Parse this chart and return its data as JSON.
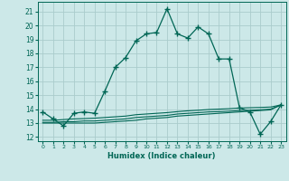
{
  "xlabel": "Humidex (Indice chaleur)",
  "background_color": "#cce8e8",
  "grid_color": "#aacccc",
  "line_color": "#006655",
  "xlim": [
    -0.5,
    23.5
  ],
  "ylim": [
    11.7,
    21.7
  ],
  "yticks": [
    12,
    13,
    14,
    15,
    16,
    17,
    18,
    19,
    20,
    21
  ],
  "xticks": [
    0,
    1,
    2,
    3,
    4,
    5,
    6,
    7,
    8,
    9,
    10,
    11,
    12,
    13,
    14,
    15,
    16,
    17,
    18,
    19,
    20,
    21,
    22,
    23
  ],
  "main_line": [
    13.8,
    13.3,
    12.8,
    13.7,
    13.8,
    13.7,
    15.3,
    17.0,
    17.7,
    18.9,
    19.4,
    19.5,
    21.2,
    19.4,
    19.1,
    19.9,
    19.4,
    17.6,
    17.6,
    14.1,
    13.8,
    12.2,
    13.1,
    14.3
  ],
  "flat_lines": [
    [
      13.0,
      13.0,
      13.0,
      13.0,
      13.0,
      13.0,
      13.05,
      13.1,
      13.15,
      13.2,
      13.3,
      13.35,
      13.4,
      13.5,
      13.55,
      13.6,
      13.65,
      13.7,
      13.75,
      13.8,
      13.85,
      13.9,
      13.95,
      14.3
    ],
    [
      13.05,
      13.05,
      13.1,
      13.1,
      13.15,
      13.15,
      13.2,
      13.25,
      13.3,
      13.4,
      13.45,
      13.5,
      13.55,
      13.65,
      13.7,
      13.75,
      13.8,
      13.82,
      13.85,
      13.9,
      13.92,
      13.95,
      14.0,
      14.3
    ],
    [
      13.2,
      13.2,
      13.25,
      13.3,
      13.32,
      13.35,
      13.4,
      13.45,
      13.5,
      13.6,
      13.65,
      13.7,
      13.75,
      13.82,
      13.88,
      13.92,
      13.97,
      14.0,
      14.03,
      14.08,
      14.1,
      14.12,
      14.15,
      14.3
    ]
  ]
}
